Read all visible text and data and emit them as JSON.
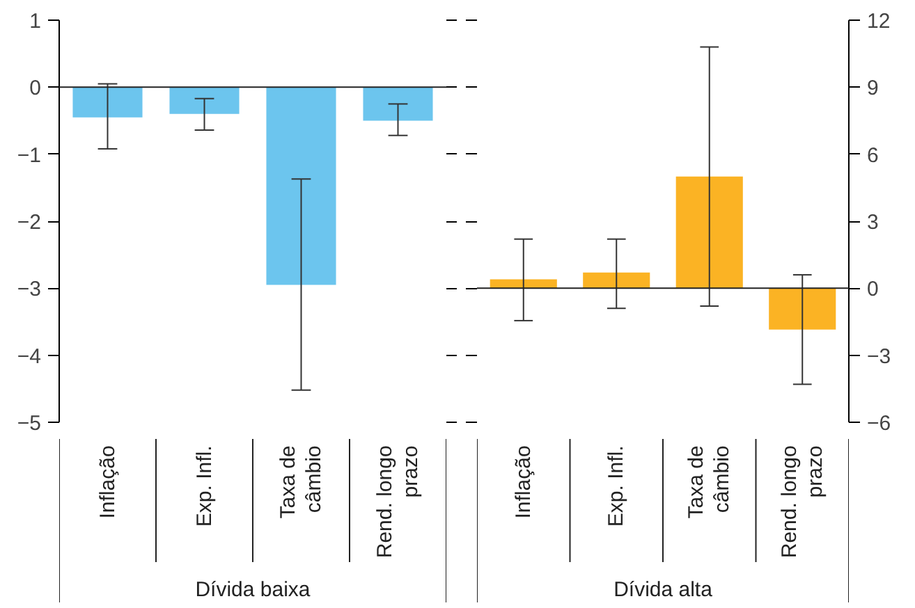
{
  "chart_data": [
    {
      "type": "bar",
      "xlabel": "Dívida baixa",
      "categories": [
        "Inflação",
        "Exp. Infl.",
        "Taxa de câmbio",
        "Rend. longo prazo"
      ],
      "values": [
        -0.45,
        -0.4,
        -2.95,
        -0.5
      ],
      "errors": [
        [
          -0.92,
          0.05
        ],
        [
          -0.64,
          -0.17
        ],
        [
          -4.52,
          -1.37
        ],
        [
          -0.72,
          -0.25
        ]
      ],
      "color": "#6cc5ee",
      "ylim": [
        -5,
        1
      ],
      "yticks": [
        -5,
        -4,
        -3,
        -2,
        -1,
        0,
        1
      ]
    },
    {
      "type": "bar",
      "xlabel": "Dívida alta",
      "categories": [
        "Inflação",
        "Exp. Infl.",
        "Taxa de câmbio",
        "Rend. longo prazo"
      ],
      "values": [
        0.4,
        0.7,
        5.0,
        -1.85
      ],
      "errors": [
        [
          -1.45,
          2.2
        ],
        [
          -0.9,
          2.2
        ],
        [
          -0.8,
          10.8
        ],
        [
          -4.3,
          0.6
        ]
      ],
      "color": "#fbb324",
      "ylim": [
        -6,
        12
      ],
      "yticks": [
        -6,
        -3,
        0,
        3,
        6,
        9,
        12
      ]
    }
  ]
}
